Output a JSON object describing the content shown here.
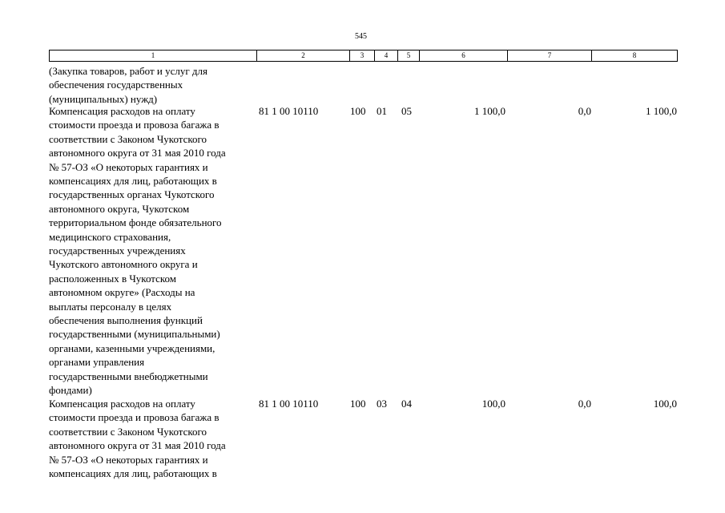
{
  "page_number": "545",
  "header": [
    "1",
    "2",
    "3",
    "4",
    "5",
    "6",
    "7",
    "8"
  ],
  "rows": [
    {
      "text": [
        "(Закупка товаров, работ и услуг для",
        "обеспечения государственных",
        "(муниципальных) нужд)"
      ]
    },
    {
      "text": [
        "Компенсация расходов на оплату",
        "стоимости проезда и провоза багажа в",
        "соответствии с Законом Чукотского",
        "автономного округа от 31 мая 2010 года",
        "№ 57-ОЗ «О некоторых гарантиях и",
        "компенсациях для лиц, работающих в",
        "государственных органах Чукотского",
        "автономного округа, Чукотском",
        "территориальном фонде обязательного",
        "медицинского страхования,",
        "государственных учреждениях",
        "Чукотского автономного округа и",
        "расположенных в Чукотском",
        "автономном округе» (Расходы на",
        "выплаты персоналу в целях",
        "обеспечения выполнения функций",
        "государственными (муниципальными)",
        "органами, казенными учреждениями,",
        "органами управления",
        "государственными внебюджетными",
        "фондами)"
      ],
      "cells": [
        "81 1 00 10110",
        "100",
        "01",
        "05",
        "1 100,0",
        "0,0",
        "1 100,0"
      ]
    },
    {
      "text": [
        "Компенсация расходов на оплату",
        "стоимости проезда и провоза багажа в",
        "соответствии с Законом Чукотского",
        "автономного округа от 31 мая 2010 года",
        "№ 57-ОЗ «О некоторых гарантиях и",
        "компенсациях для лиц, работающих в"
      ],
      "cells": [
        "81 1 00 10110",
        "100",
        "03",
        "04",
        "100,0",
        "0,0",
        "100,0"
      ]
    }
  ]
}
